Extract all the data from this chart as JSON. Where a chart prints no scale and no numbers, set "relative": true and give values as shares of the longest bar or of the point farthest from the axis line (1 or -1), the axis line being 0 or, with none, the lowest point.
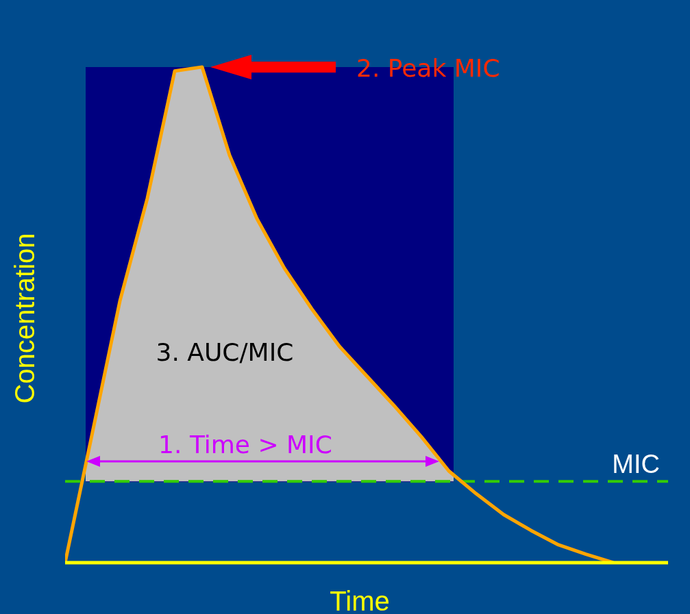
{
  "chart_data": {
    "type": "line",
    "relative": true,
    "xlabel": "Time",
    "ylabel": "Concentration",
    "categories": [
      null,
      null,
      null,
      null,
      null,
      null,
      null,
      null,
      null,
      null,
      null,
      null,
      null,
      null,
      null,
      null,
      null,
      null,
      null,
      null,
      null
    ],
    "series": [
      {
        "color": "#ffa500",
        "values": [
          0,
          0.263,
          0.528,
          0.735,
          0.992,
          1,
          0.822,
          0.694,
          0.594,
          0.512,
          0.437,
          0.377,
          0.317,
          0.254,
          0.185,
          0.139,
          0.097,
          0.065,
          0.036,
          0.017,
          0
        ]
      }
    ],
    "ref_lines": [
      {
        "axis": "y",
        "value": 0.164,
        "label": "MIC",
        "color": "#33cc00",
        "line_style": "dashed"
      }
    ],
    "annotations": [
      "2. Peak MIC",
      "3. AUC/MIC",
      "1. Time > MIC"
    ],
    "marker": "none",
    "line_style": "solid"
  }
}
